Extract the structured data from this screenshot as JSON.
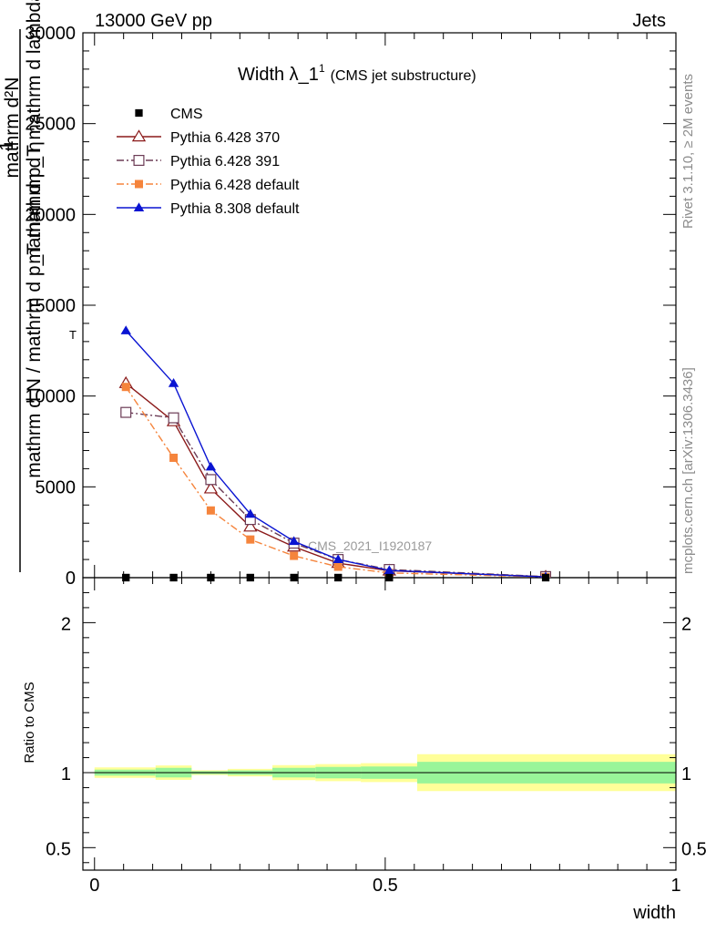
{
  "header": {
    "left": "13000 GeV pp",
    "right": "Jets"
  },
  "side_labels": {
    "rivet": "Rivet 3.1.10, ≥ 2M events",
    "mcplots": "mcplots.cern.ch [arXiv:1306.3436]"
  },
  "watermark": "CMS_2021_I1920187",
  "title": {
    "main": "Width λ_1",
    "superscript": "1",
    "sub": "(CMS jet substructure)"
  },
  "y_axis_label": {
    "line1": "1",
    "line2": "mathrm d N / mathrm d p_T mathrm d η",
    "line3": "mathrm d²N",
    "line4": "mathrm d p_T mathrm d lambda",
    "subscript": "T"
  },
  "ratio_ylabel": "Ratio to CMS",
  "xlabel": "width",
  "chart_data": [
    {
      "type": "line",
      "panel": "main",
      "xlim": [
        -0.02,
        1.0
      ],
      "ylim": [
        0,
        30000
      ],
      "yticks": [
        0,
        5000,
        10000,
        15000,
        20000,
        25000,
        30000
      ],
      "ytick_labels": [
        "0",
        "5000",
        "10000",
        "15000",
        "20000",
        "25000",
        "30000"
      ],
      "legend_position": "top-left",
      "series": [
        {
          "name": "CMS",
          "style": "data",
          "color": "#000000",
          "marker": "square-filled",
          "x": [
            0.054,
            0.136,
            0.2,
            0.268,
            0.343,
            0.419,
            0.507,
            0.776
          ],
          "y": [
            0,
            0,
            0,
            0,
            0,
            0,
            0,
            0
          ]
        },
        {
          "name": "Pythia 6.428 370",
          "color": "#8b1a1a",
          "dash": "solid",
          "marker": "triangle-open",
          "x": [
            0.054,
            0.136,
            0.2,
            0.268,
            0.343,
            0.419,
            0.507,
            0.776
          ],
          "y": [
            10700,
            8600,
            4900,
            2800,
            1700,
            800,
            380,
            50
          ]
        },
        {
          "name": "Pythia 6.428 391",
          "color": "#6b3b55",
          "dash": "dashdot",
          "marker": "square-open",
          "x": [
            0.054,
            0.136,
            0.2,
            0.268,
            0.343,
            0.419,
            0.507,
            0.776
          ],
          "y": [
            9100,
            8800,
            5400,
            3200,
            1900,
            1000,
            450,
            60
          ]
        },
        {
          "name": "Pythia 6.428 default",
          "color": "#f5843c",
          "dash": "dashdot",
          "marker": "square-filled",
          "x": [
            0.054,
            0.136,
            0.2,
            0.268,
            0.343,
            0.419,
            0.507,
            0.776
          ],
          "y": [
            10500,
            6600,
            3700,
            2100,
            1200,
            600,
            260,
            40
          ]
        },
        {
          "name": "Pythia 8.308 default",
          "color": "#0a14d2",
          "dash": "solid",
          "marker": "triangle-filled",
          "x": [
            0.054,
            0.136,
            0.2,
            0.268,
            0.343,
            0.419,
            0.507,
            0.776
          ],
          "y": [
            13600,
            10700,
            6100,
            3500,
            2000,
            1000,
            400,
            40
          ]
        }
      ]
    },
    {
      "type": "area",
      "panel": "ratio",
      "ylabel": "Ratio to CMS",
      "xlabel": "width",
      "xlim": [
        -0.02,
        1.0
      ],
      "ylim": [
        0.35,
        2.3
      ],
      "yticks": [
        0.5,
        1,
        2
      ],
      "ytick_labels": [
        "0.5",
        "1",
        "2"
      ],
      "xticks": [
        0,
        0.5,
        1
      ],
      "xtick_labels": [
        "0",
        "0.5",
        "1"
      ],
      "reference_line": 1,
      "band_colors": {
        "total": "#ffff99",
        "stat": "#99f599"
      },
      "bins": [
        {
          "xlow": 0.0,
          "xhigh": 0.105,
          "total": [
            0.965,
            1.035
          ],
          "stat": [
            0.98,
            1.02
          ]
        },
        {
          "xlow": 0.105,
          "xhigh": 0.167,
          "total": [
            0.952,
            1.048
          ],
          "stat": [
            0.968,
            1.032
          ]
        },
        {
          "xlow": 0.167,
          "xhigh": 0.229,
          "total": [
            0.984,
            1.016
          ],
          "stat": [
            0.99,
            1.01
          ]
        },
        {
          "xlow": 0.229,
          "xhigh": 0.306,
          "total": [
            0.975,
            1.025
          ],
          "stat": [
            0.985,
            1.015
          ]
        },
        {
          "xlow": 0.306,
          "xhigh": 0.38,
          "total": [
            0.95,
            1.05
          ],
          "stat": [
            0.968,
            1.032
          ]
        },
        {
          "xlow": 0.38,
          "xhigh": 0.458,
          "total": [
            0.943,
            1.057
          ],
          "stat": [
            0.962,
            1.038
          ]
        },
        {
          "xlow": 0.458,
          "xhigh": 0.555,
          "total": [
            0.937,
            1.063
          ],
          "stat": [
            0.959,
            1.041
          ]
        },
        {
          "xlow": 0.555,
          "xhigh": 1.0,
          "total": [
            0.877,
            1.123
          ],
          "stat": [
            0.928,
            1.072
          ]
        }
      ]
    }
  ]
}
